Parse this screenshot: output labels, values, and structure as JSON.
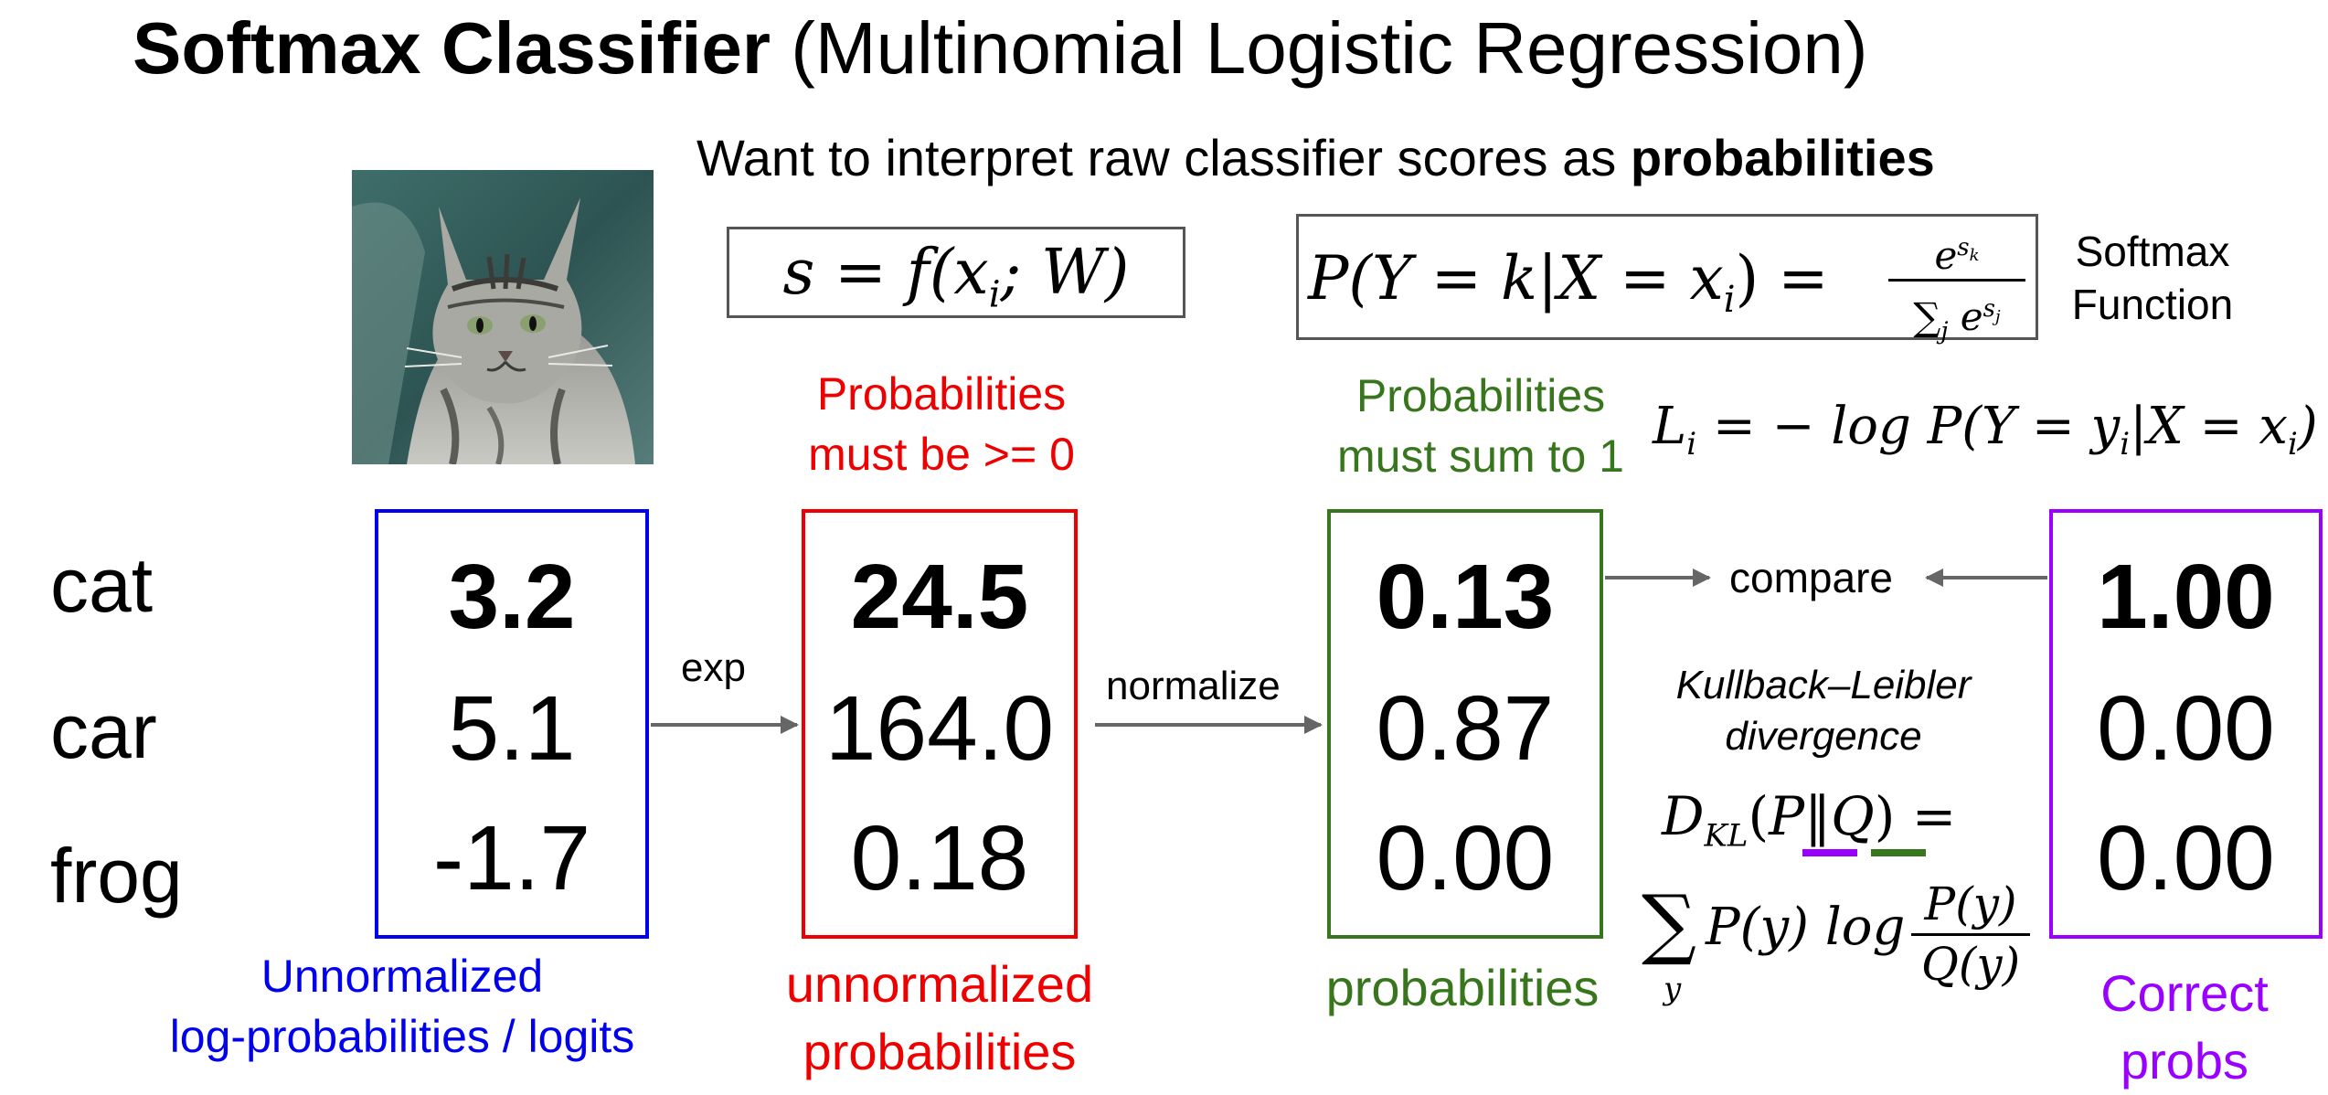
{
  "title": {
    "bold": "Softmax Classifier",
    "rest": "(Multinomial Logistic Regression)"
  },
  "subtitle": {
    "prefix": "Want to interpret raw classifier scores as ",
    "bold": "probabilities"
  },
  "image_alt": "cat photo",
  "formulas": {
    "score": {
      "lhs": "s",
      "eq": "=",
      "fn": "f",
      "args": "(x",
      "sub": "i",
      "rest": "; W)"
    },
    "softmax": {
      "lhs": "P(Y = k|X = x",
      "sub": "i",
      "close": ") =",
      "num": "e",
      "num_sup": "s",
      "num_supsub": "k",
      "den_sum": "∑",
      "den_sub": "j",
      "den_e": "e",
      "den_sup": "s",
      "den_supsub": "j"
    },
    "softmax_label": [
      "Softmax",
      "Function"
    ],
    "loss": {
      "lhs": "L",
      "lhs_sub": "i",
      "rhs": "= − log P(Y = y",
      "rhs_sub": "i",
      "rhs_mid": "|X = x",
      "rhs_sub2": "i",
      "close": ")"
    },
    "kl_title": [
      "Kullback–Leibler",
      "divergence"
    ],
    "kl_line1": {
      "d": "D",
      "sub": "KL",
      "open": "(",
      "p": "P",
      "sep": "‖",
      "q": "Q",
      "close": ") ="
    },
    "kl_line2": {
      "sum": "∑",
      "sum_sub": "y",
      "py": "P(y) log",
      "num": "P(y)",
      "den": "Q(y)"
    }
  },
  "classes": [
    "cat",
    "car",
    "frog"
  ],
  "columns": {
    "logits": {
      "values": [
        "3.2",
        "5.1",
        "-1.7"
      ],
      "caption": [
        "Unnormalized",
        "log-probabilities / logits"
      ],
      "color": "#0000ee"
    },
    "unnormalized": {
      "values": [
        "24.5",
        "164.0",
        "0.18"
      ],
      "caption": [
        "unnormalized",
        "probabilities"
      ],
      "note": [
        "Probabilities",
        "must be >= 0"
      ],
      "color": "#ee0000"
    },
    "probabilities": {
      "values": [
        "0.13",
        "0.87",
        "0.00"
      ],
      "caption": [
        "probabilities"
      ],
      "note": [
        "Probabilities",
        "must sum to 1"
      ],
      "color": "#38761d"
    },
    "correct": {
      "values": [
        "1.00",
        "0.00",
        "0.00"
      ],
      "caption": [
        "Correct",
        "probs"
      ],
      "color": "#9900ff"
    }
  },
  "arrows": {
    "exp": "exp",
    "normalize": "normalize",
    "compare": "compare"
  },
  "colors": {
    "arrow": "#666666",
    "kl_p_underline": "#9900ff",
    "kl_q_underline": "#38761d"
  }
}
